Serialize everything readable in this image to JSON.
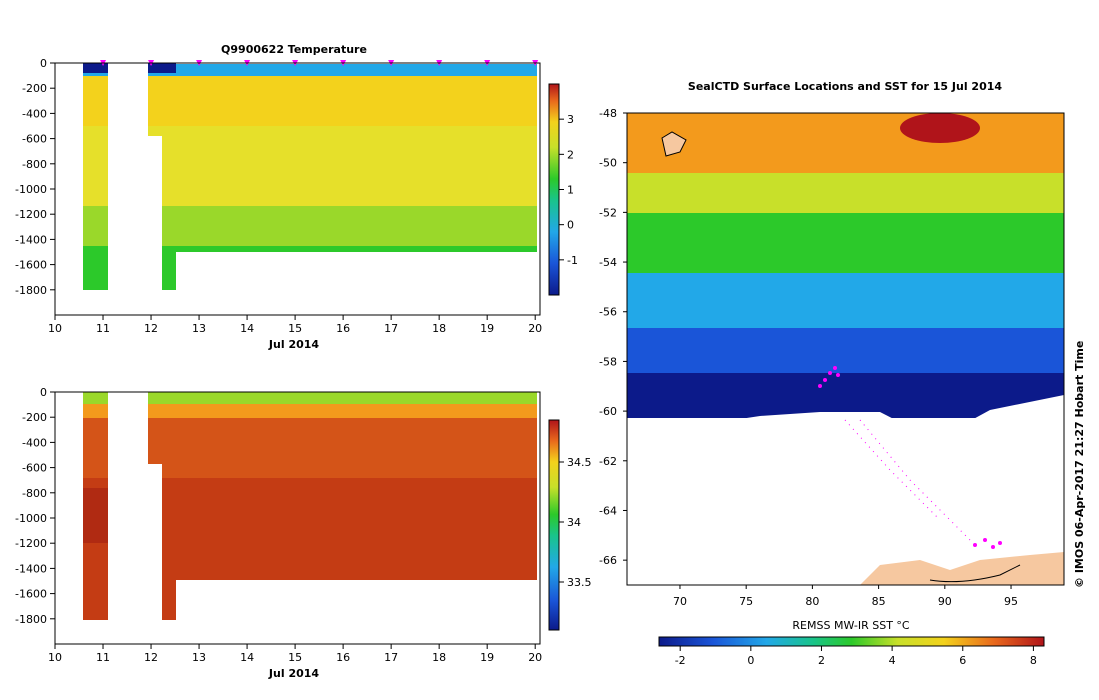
{
  "chart_data": [
    {
      "type": "heatmap",
      "title": "Q9900622  Temperature",
      "xlabel": "Jul 2014",
      "ylabel": "",
      "xlim": [
        10,
        20.1
      ],
      "ylim": [
        -2000,
        0
      ],
      "x_ticks": [
        "10",
        "11",
        "12",
        "13",
        "14",
        "15",
        "16",
        "17",
        "18",
        "19",
        "20"
      ],
      "y_ticks": [
        "0",
        "-200",
        "-400",
        "-600",
        "-800",
        "-1000",
        "-1200",
        "-1400",
        "-1600",
        "-1800"
      ],
      "colorbar_ticks": [
        "3",
        "2",
        "1",
        "0",
        "-1"
      ],
      "colorbar_range": [
        -2,
        4
      ],
      "profile_markers_day": [
        11,
        12,
        13,
        14,
        15,
        16,
        17,
        18,
        19,
        20
      ]
    },
    {
      "type": "heatmap",
      "title": "",
      "xlabel": "Jul 2014",
      "ylabel": "",
      "xlim": [
        10,
        20.1
      ],
      "ylim": [
        -2000,
        0
      ],
      "x_ticks": [
        "10",
        "11",
        "12",
        "13",
        "14",
        "15",
        "16",
        "17",
        "18",
        "19",
        "20"
      ],
      "y_ticks": [
        "0",
        "-200",
        "-400",
        "-600",
        "-800",
        "-1000",
        "-1200",
        "-1400",
        "-1600",
        "-1800"
      ],
      "colorbar_ticks": [
        "34.5",
        "34",
        "33.5"
      ],
      "colorbar_range": [
        33.1,
        34.85
      ]
    },
    {
      "type": "heatmap",
      "title": "SealCTD Surface Locations and SST for 15 Jul 2014",
      "xlabel": "",
      "ylabel": "",
      "xlim": [
        66,
        99
      ],
      "ylim": [
        -67,
        -48
      ],
      "x_ticks": [
        "70",
        "75",
        "80",
        "85",
        "90",
        "95"
      ],
      "y_ticks": [
        "-48",
        "-50",
        "-52",
        "-54",
        "-56",
        "-58",
        "-60",
        "-62",
        "-64",
        "-66"
      ],
      "colorbar_label": "REMSS MW-IR SST °C",
      "colorbar_ticks": [
        "-2",
        "0",
        "2",
        "4",
        "6",
        "8"
      ],
      "colorbar_range": [
        -2.6,
        8.3
      ]
    }
  ],
  "credit": "© IMOS 06-Apr-2017 21:27 Hobart Time"
}
